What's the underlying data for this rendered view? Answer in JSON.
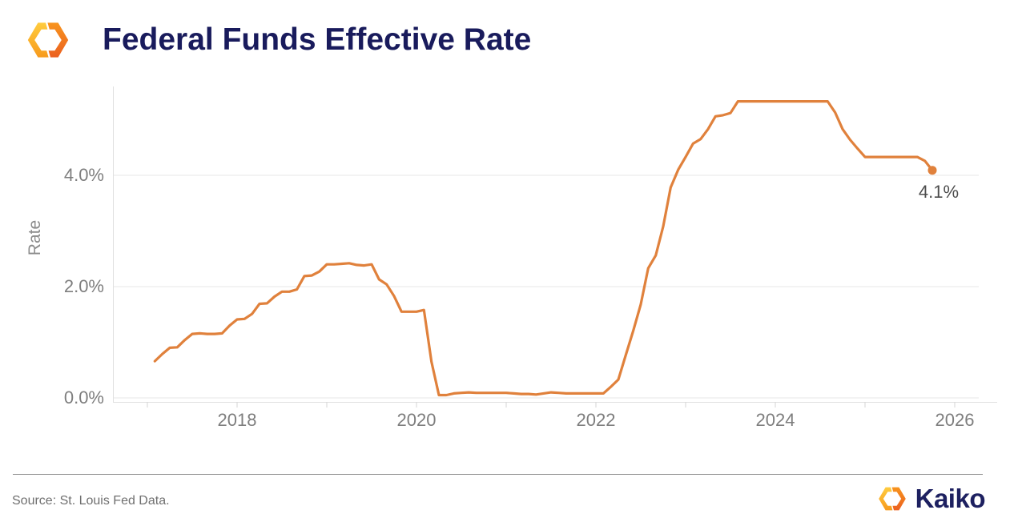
{
  "header": {
    "title": "Federal Funds Effective Rate",
    "logo_icon": "kaiko-hexagon-icon"
  },
  "chart_data": {
    "type": "line",
    "title": "Federal Funds Effective Rate",
    "xlabel": "",
    "ylabel": "Rate",
    "legend": "none",
    "grid": "horizontal",
    "line_color": "#E0813C",
    "end_label": "4.1%",
    "y_axis": {
      "tick_values": [
        0,
        2,
        4
      ],
      "tick_labels": [
        "0.0%",
        "2.0%",
        "4.0%"
      ],
      "range": [
        0,
        5.7
      ]
    },
    "x_axis": {
      "label_years": [
        "2018",
        "2020",
        "2022",
        "2024",
        "2026"
      ],
      "minor_tick_years": [
        2017,
        2018,
        2019,
        2020,
        2021,
        2022,
        2023,
        2024,
        2025,
        2026
      ],
      "range": [
        2016.6,
        2026.3
      ]
    },
    "series": [
      {
        "name": "Federal Funds Effective Rate (monthly, %)",
        "points": [
          [
            "2017-02",
            0.66
          ],
          [
            "2017-03",
            0.79
          ],
          [
            "2017-04",
            0.9
          ],
          [
            "2017-05",
            0.91
          ],
          [
            "2017-06",
            1.04
          ],
          [
            "2017-07",
            1.15
          ],
          [
            "2017-08",
            1.16
          ],
          [
            "2017-09",
            1.15
          ],
          [
            "2017-10",
            1.15
          ],
          [
            "2017-11",
            1.16
          ],
          [
            "2017-12",
            1.3
          ],
          [
            "2018-01",
            1.41
          ],
          [
            "2018-02",
            1.42
          ],
          [
            "2018-03",
            1.51
          ],
          [
            "2018-04",
            1.69
          ],
          [
            "2018-05",
            1.7
          ],
          [
            "2018-06",
            1.82
          ],
          [
            "2018-07",
            1.91
          ],
          [
            "2018-08",
            1.91
          ],
          [
            "2018-09",
            1.95
          ],
          [
            "2018-10",
            2.19
          ],
          [
            "2018-11",
            2.2
          ],
          [
            "2018-12",
            2.27
          ],
          [
            "2019-01",
            2.4
          ],
          [
            "2019-02",
            2.4
          ],
          [
            "2019-03",
            2.41
          ],
          [
            "2019-04",
            2.42
          ],
          [
            "2019-05",
            2.39
          ],
          [
            "2019-06",
            2.38
          ],
          [
            "2019-07",
            2.4
          ],
          [
            "2019-08",
            2.13
          ],
          [
            "2019-09",
            2.04
          ],
          [
            "2019-10",
            1.83
          ],
          [
            "2019-11",
            1.55
          ],
          [
            "2019-12",
            1.55
          ],
          [
            "2020-01",
            1.55
          ],
          [
            "2020-02",
            1.58
          ],
          [
            "2020-03",
            0.65
          ],
          [
            "2020-04",
            0.05
          ],
          [
            "2020-05",
            0.05
          ],
          [
            "2020-06",
            0.08
          ],
          [
            "2020-07",
            0.09
          ],
          [
            "2020-08",
            0.1
          ],
          [
            "2020-09",
            0.09
          ],
          [
            "2020-10",
            0.09
          ],
          [
            "2020-11",
            0.09
          ],
          [
            "2020-12",
            0.09
          ],
          [
            "2021-01",
            0.09
          ],
          [
            "2021-02",
            0.08
          ],
          [
            "2021-03",
            0.07
          ],
          [
            "2021-04",
            0.07
          ],
          [
            "2021-05",
            0.06
          ],
          [
            "2021-06",
            0.08
          ],
          [
            "2021-07",
            0.1
          ],
          [
            "2021-08",
            0.09
          ],
          [
            "2021-09",
            0.08
          ],
          [
            "2021-10",
            0.08
          ],
          [
            "2021-11",
            0.08
          ],
          [
            "2021-12",
            0.08
          ],
          [
            "2022-01",
            0.08
          ],
          [
            "2022-02",
            0.08
          ],
          [
            "2022-03",
            0.2
          ],
          [
            "2022-04",
            0.33
          ],
          [
            "2022-05",
            0.77
          ],
          [
            "2022-06",
            1.21
          ],
          [
            "2022-07",
            1.68
          ],
          [
            "2022-08",
            2.33
          ],
          [
            "2022-09",
            2.56
          ],
          [
            "2022-10",
            3.08
          ],
          [
            "2022-11",
            3.78
          ],
          [
            "2022-12",
            4.1
          ],
          [
            "2023-01",
            4.33
          ],
          [
            "2023-02",
            4.57
          ],
          [
            "2023-03",
            4.65
          ],
          [
            "2023-04",
            4.83
          ],
          [
            "2023-05",
            5.06
          ],
          [
            "2023-06",
            5.08
          ],
          [
            "2023-07",
            5.12
          ],
          [
            "2023-08",
            5.33
          ],
          [
            "2023-09",
            5.33
          ],
          [
            "2023-10",
            5.33
          ],
          [
            "2023-11",
            5.33
          ],
          [
            "2023-12",
            5.33
          ],
          [
            "2024-01",
            5.33
          ],
          [
            "2024-02",
            5.33
          ],
          [
            "2024-03",
            5.33
          ],
          [
            "2024-04",
            5.33
          ],
          [
            "2024-05",
            5.33
          ],
          [
            "2024-06",
            5.33
          ],
          [
            "2024-07",
            5.33
          ],
          [
            "2024-08",
            5.33
          ],
          [
            "2024-09",
            5.13
          ],
          [
            "2024-10",
            4.83
          ],
          [
            "2024-11",
            4.64
          ],
          [
            "2024-12",
            4.48
          ],
          [
            "2025-01",
            4.33
          ],
          [
            "2025-02",
            4.33
          ],
          [
            "2025-03",
            4.33
          ],
          [
            "2025-04",
            4.33
          ],
          [
            "2025-05",
            4.33
          ],
          [
            "2025-06",
            4.33
          ],
          [
            "2025-07",
            4.33
          ],
          [
            "2025-08",
            4.33
          ],
          [
            "2025-09",
            4.26
          ],
          [
            "2025-10",
            4.09
          ]
        ]
      }
    ]
  },
  "footer": {
    "source": "Source: St. Louis Fed Data.",
    "brand": "Kaiko"
  },
  "colors": {
    "line": "#E0813C",
    "title_navy": "#191B5C",
    "brand_navy": "#1D2060",
    "tick_text": "#7E7E7E",
    "grid": "#ECECEC",
    "axis": "#E0E0E0",
    "tick": "#D6D6D6",
    "end_label_text": "#4D4D4D",
    "source_text": "#6F6F6F",
    "divider": "#919191",
    "logo_yellow": "#FFCC3F",
    "logo_orange": "#F6891E",
    "logo_deep_orange": "#EB6020"
  }
}
